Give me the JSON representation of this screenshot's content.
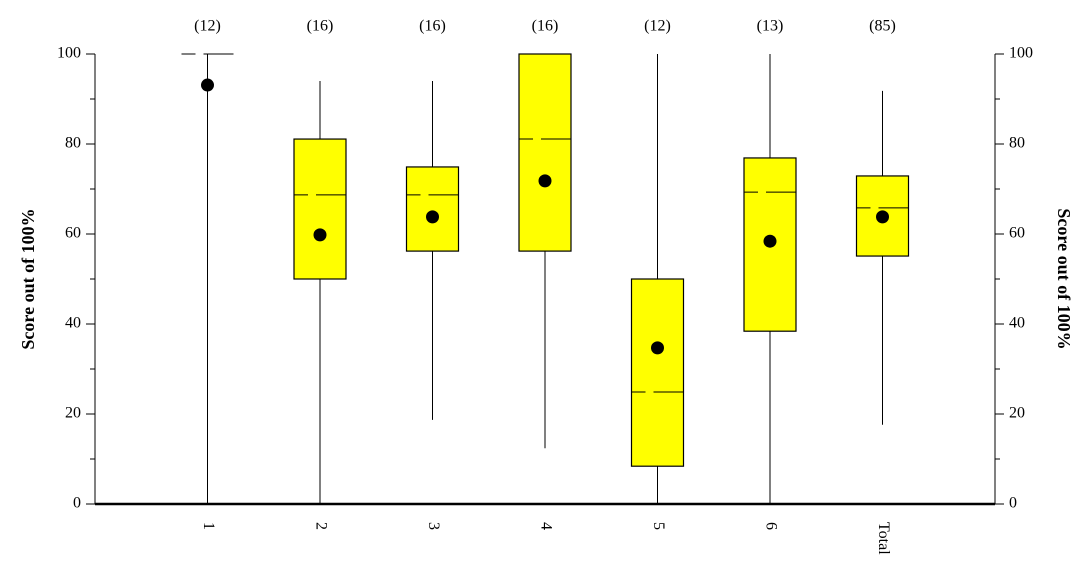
{
  "chart_data": {
    "type": "box",
    "ylabel": "Score out of 100%",
    "y2label": "Score out of 100%",
    "categories": [
      "1",
      "2",
      "3",
      "4",
      "5",
      "6",
      "Total"
    ],
    "counts": [
      "(12)",
      "(16)",
      "(16)",
      "(16)",
      "(12)",
      "(13)",
      "(85)"
    ],
    "color": "#ffff00",
    "min": [
      0,
      0,
      18.7,
      12.4,
      0,
      0,
      17.6
    ],
    "q1": [
      100,
      50,
      56.2,
      56.2,
      8.4,
      38.4,
      55.1
    ],
    "median": [
      100,
      68.7,
      68.7,
      81.1,
      24.9,
      69.3,
      65.8
    ],
    "q3": [
      100,
      81.1,
      74.9,
      100,
      50,
      76.9,
      72.9
    ],
    "max": [
      100,
      94,
      94,
      100,
      100,
      100,
      91.8
    ],
    "mean": [
      93.1,
      59.8,
      63.8,
      71.8,
      34.7,
      58.4,
      63.8
    ],
    "ylim": [
      0,
      100
    ],
    "yticks": [
      0,
      20,
      40,
      60,
      80,
      100
    ],
    "yminorticks": [
      10,
      30,
      50,
      70,
      90
    ],
    "y2lim": [
      0,
      100
    ],
    "y2ticks": [
      0,
      20,
      40,
      60,
      80,
      100
    ]
  }
}
